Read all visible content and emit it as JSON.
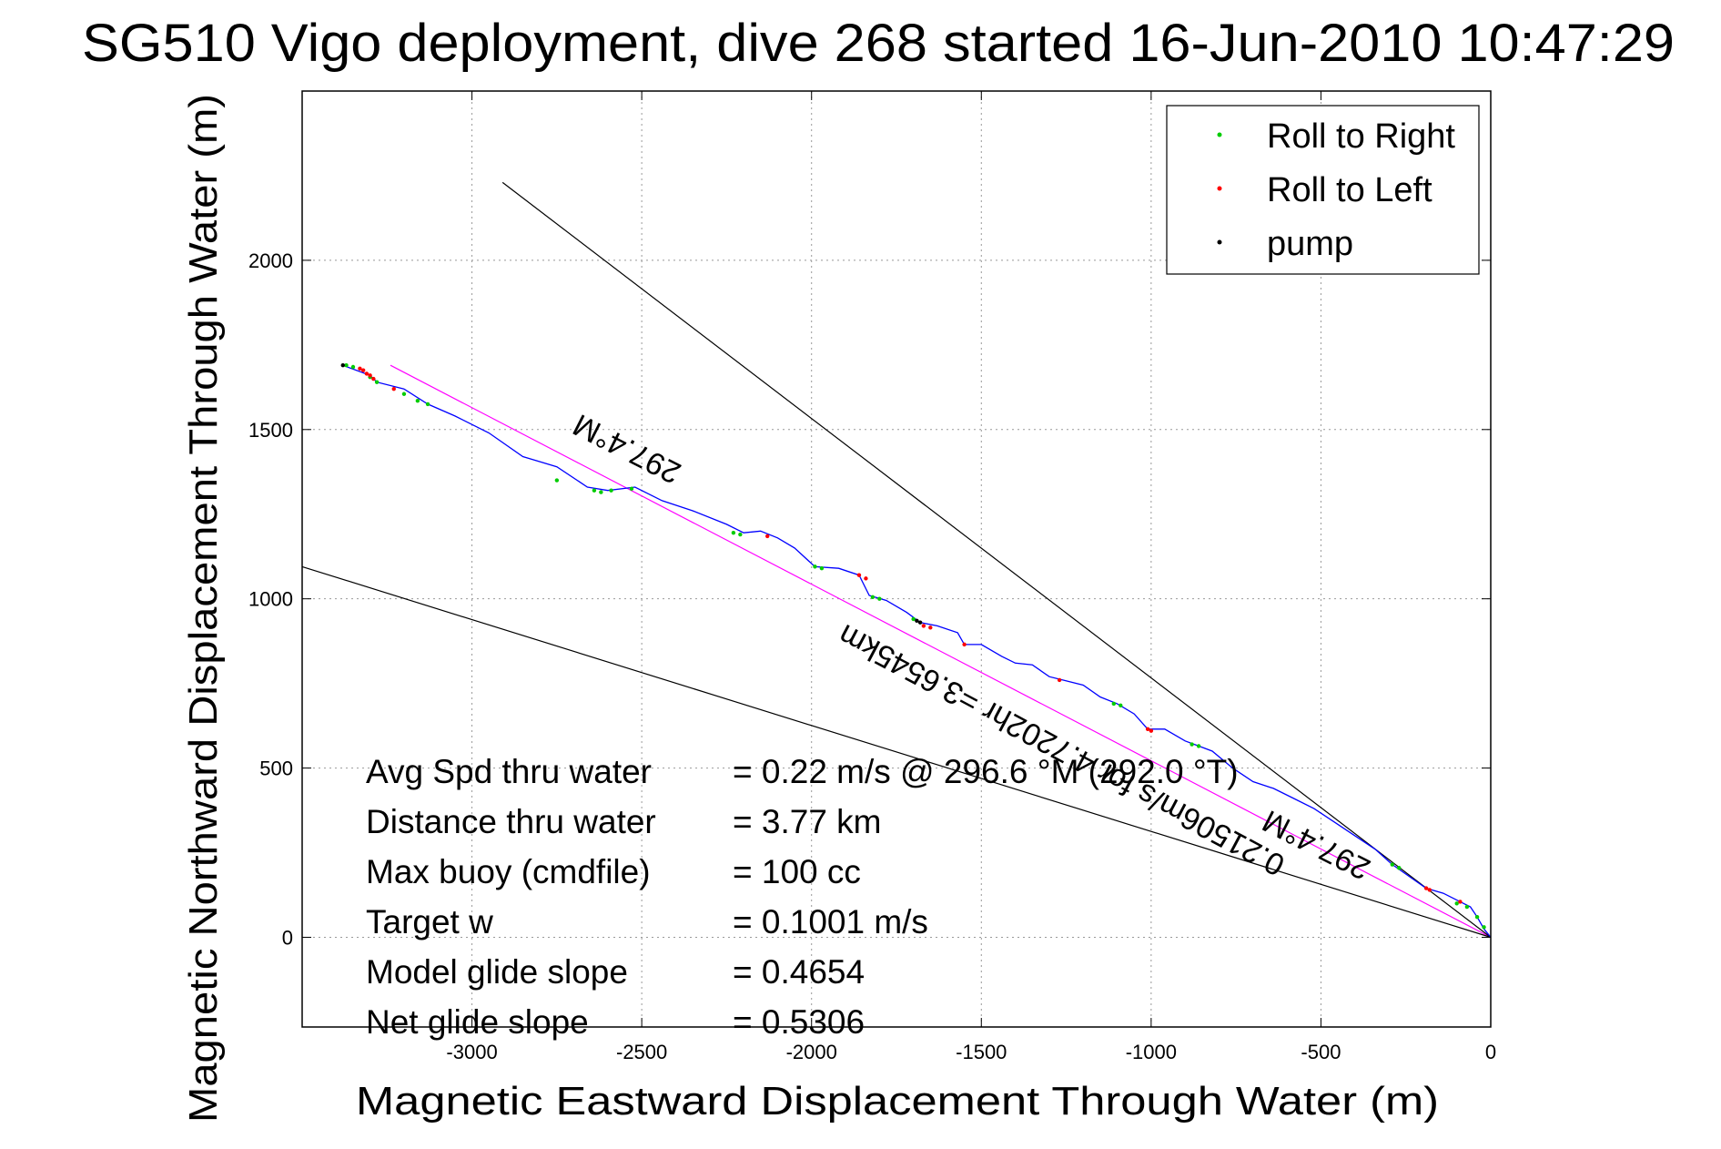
{
  "chart_data": {
    "type": "line",
    "title": "SG510 Vigo deployment, dive 268 started 16-Jun-2010 10:47:29",
    "xlabel": "Magnetic Eastward Displacement Through Water (m)",
    "ylabel": "Magnetic Northward Displacement Through Water (m)",
    "xlim": [
      -3500,
      0
    ],
    "ylim": [
      -265,
      2500
    ],
    "xticks": [
      -3000,
      -2500,
      -2000,
      -1500,
      -1000,
      -500,
      0
    ],
    "yticks": [
      0,
      500,
      1000,
      1500,
      2000
    ],
    "xtick_labels": [
      "-3000",
      "-2500",
      "-2000",
      "-1500",
      "-1000",
      "-500",
      "0"
    ],
    "ytick_labels": [
      "0",
      "500",
      "1000",
      "1500",
      "2000"
    ],
    "grid": true,
    "legend_position": "top-right",
    "series": [
      {
        "name": "Roll to Right",
        "color": "#00cc00",
        "points": [
          [
            -3370,
            1690
          ],
          [
            -3350,
            1685
          ],
          [
            -3300,
            1655
          ],
          [
            -3280,
            1640
          ],
          [
            -3200,
            1605
          ],
          [
            -3160,
            1585
          ],
          [
            -3130,
            1575
          ],
          [
            -2750,
            1350
          ],
          [
            -2640,
            1320
          ],
          [
            -2620,
            1315
          ],
          [
            -2590,
            1320
          ],
          [
            -2530,
            1325
          ],
          [
            -2230,
            1195
          ],
          [
            -2210,
            1190
          ],
          [
            -1990,
            1095
          ],
          [
            -1970,
            1090
          ],
          [
            -1820,
            1005
          ],
          [
            -1800,
            1000
          ],
          [
            -1700,
            940
          ],
          [
            -1110,
            690
          ],
          [
            -1090,
            685
          ],
          [
            -880,
            570
          ],
          [
            -860,
            565
          ],
          [
            -290,
            215
          ],
          [
            -270,
            205
          ],
          [
            -100,
            100
          ],
          [
            -70,
            90
          ],
          [
            -40,
            60
          ],
          [
            -20,
            30
          ]
        ]
      },
      {
        "name": "Roll to Left",
        "color": "#ff0000",
        "points": [
          [
            -3330,
            1680
          ],
          [
            -3320,
            1675
          ],
          [
            -3310,
            1665
          ],
          [
            -3300,
            1660
          ],
          [
            -3290,
            1650
          ],
          [
            -3230,
            1620
          ],
          [
            -2130,
            1185
          ],
          [
            -1860,
            1070
          ],
          [
            -1840,
            1060
          ],
          [
            -1670,
            920
          ],
          [
            -1650,
            915
          ],
          [
            -1550,
            865
          ],
          [
            -1270,
            760
          ],
          [
            -1010,
            615
          ],
          [
            -1000,
            610
          ],
          [
            -190,
            145
          ],
          [
            -180,
            140
          ],
          [
            -90,
            105
          ]
        ]
      },
      {
        "name": "pump",
        "color": "#000000",
        "points": [
          [
            -3380,
            1690
          ],
          [
            -1690,
            935
          ],
          [
            -1680,
            930
          ]
        ]
      }
    ],
    "track": {
      "name": "track",
      "color": "#0000ff",
      "points": [
        [
          -3380,
          1690
        ],
        [
          -3300,
          1660
        ],
        [
          -3280,
          1640
        ],
        [
          -3200,
          1620
        ],
        [
          -3130,
          1575
        ],
        [
          -3050,
          1540
        ],
        [
          -2950,
          1490
        ],
        [
          -2850,
          1420
        ],
        [
          -2750,
          1390
        ],
        [
          -2660,
          1330
        ],
        [
          -2600,
          1320
        ],
        [
          -2520,
          1330
        ],
        [
          -2440,
          1290
        ],
        [
          -2350,
          1260
        ],
        [
          -2250,
          1220
        ],
        [
          -2200,
          1195
        ],
        [
          -2150,
          1200
        ],
        [
          -2100,
          1180
        ],
        [
          -2050,
          1150
        ],
        [
          -1990,
          1095
        ],
        [
          -1920,
          1090
        ],
        [
          -1860,
          1070
        ],
        [
          -1830,
          1010
        ],
        [
          -1780,
          995
        ],
        [
          -1720,
          960
        ],
        [
          -1680,
          930
        ],
        [
          -1630,
          920
        ],
        [
          -1570,
          900
        ],
        [
          -1550,
          865
        ],
        [
          -1500,
          865
        ],
        [
          -1440,
          830
        ],
        [
          -1400,
          810
        ],
        [
          -1350,
          805
        ],
        [
          -1300,
          770
        ],
        [
          -1260,
          760
        ],
        [
          -1200,
          745
        ],
        [
          -1150,
          710
        ],
        [
          -1100,
          690
        ],
        [
          -1050,
          660
        ],
        [
          -1010,
          615
        ],
        [
          -960,
          615
        ],
        [
          -900,
          580
        ],
        [
          -860,
          565
        ],
        [
          -820,
          550
        ],
        [
          -760,
          500
        ],
        [
          -700,
          460
        ],
        [
          -640,
          440
        ],
        [
          -580,
          410
        ],
        [
          -520,
          380
        ],
        [
          -460,
          340
        ],
        [
          -400,
          300
        ],
        [
          -340,
          260
        ],
        [
          -290,
          215
        ],
        [
          -240,
          180
        ],
        [
          -190,
          145
        ],
        [
          -140,
          130
        ],
        [
          -90,
          105
        ],
        [
          -60,
          90
        ],
        [
          -40,
          60
        ],
        [
          -20,
          25
        ],
        [
          0,
          0
        ]
      ]
    },
    "reference_lines": [
      {
        "name": "heading-line",
        "color": "#ff00ff",
        "points": [
          [
            -3240,
            1690
          ],
          [
            0,
            0
          ]
        ]
      },
      {
        "name": "upper-envelope",
        "color": "#000000",
        "points": [
          [
            -2910,
            2230
          ],
          [
            0,
            0
          ]
        ]
      },
      {
        "name": "lower-envelope",
        "color": "#000000",
        "points": [
          [
            -3500,
            1095
          ],
          [
            0,
            0
          ]
        ]
      }
    ],
    "annotations": [
      {
        "text": "297.4°M",
        "x": -2530,
        "y": 1470,
        "angle": 207
      },
      {
        "text": "0.21506m/s for 4.7202hr =3.6545km",
        "x": -1250,
        "y": 580,
        "angle": 208
      },
      {
        "text": "297.4°M",
        "x": -500,
        "y": 300,
        "angle": 207
      }
    ],
    "stats": [
      {
        "label": "Avg Spd thru water",
        "value": "=  0.22 m/s @ 296.6  °M (292.0 °T)"
      },
      {
        "label": "Distance thru water",
        "value": "=  3.77 km"
      },
      {
        "label": "Max buoy (cmdfile)",
        "value": "= 100 cc"
      },
      {
        "label": "Target w",
        "value": "= 0.1001 m/s"
      },
      {
        "label": "Model glide slope",
        "value": "= 0.4654"
      },
      {
        "label": "Net glide slope",
        "value": "= 0.5306"
      }
    ]
  }
}
